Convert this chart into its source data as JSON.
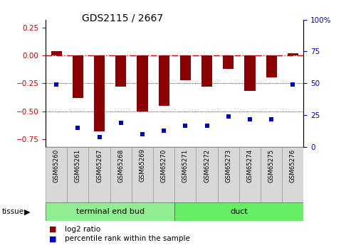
{
  "title": "GDS2115 / 2667",
  "samples": [
    "GSM65260",
    "GSM65261",
    "GSM65267",
    "GSM65268",
    "GSM65269",
    "GSM65270",
    "GSM65271",
    "GSM65272",
    "GSM65273",
    "GSM65274",
    "GSM65275",
    "GSM65276"
  ],
  "log2_ratio": [
    0.04,
    -0.38,
    -0.68,
    -0.28,
    -0.5,
    -0.45,
    -0.22,
    -0.28,
    -0.12,
    -0.32,
    -0.2,
    0.02
  ],
  "percentile_rank": [
    49,
    15,
    8,
    19,
    10,
    13,
    17,
    17,
    24,
    22,
    22,
    49
  ],
  "group_teb_count": 6,
  "group_duct_count": 6,
  "group_teb_label": "terminal end bud",
  "group_teb_color": "#90ee90",
  "group_duct_label": "duct",
  "group_duct_color": "#66ee66",
  "bar_color": "#8B0000",
  "dot_color": "#0000CC",
  "ylim_left": [
    -0.82,
    0.32
  ],
  "ylim_right": [
    0,
    100
  ],
  "yticks_left": [
    0.25,
    0.0,
    -0.25,
    -0.5,
    -0.75
  ],
  "yticks_right": [
    100,
    75,
    50,
    25,
    0
  ],
  "hline_zero_color": "#CC0000",
  "hlines_dotted": [
    -0.25,
    -0.5
  ],
  "tissue_label": "tissue"
}
